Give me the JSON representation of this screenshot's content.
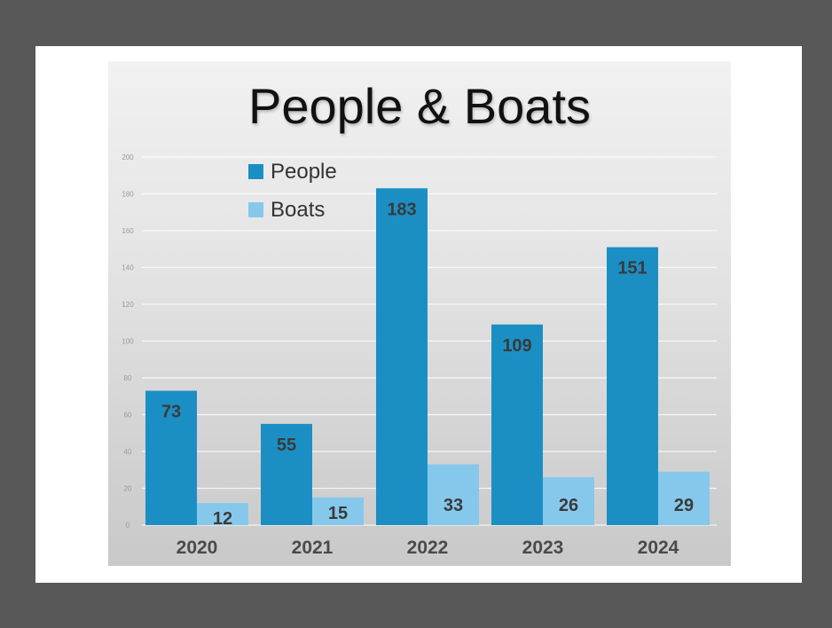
{
  "chart_data": {
    "type": "bar",
    "title": "People & Boats",
    "categories": [
      "2020",
      "2021",
      "2022",
      "2023",
      "2024"
    ],
    "series": [
      {
        "name": "People",
        "values": [
          73,
          55,
          183,
          109,
          151
        ],
        "color": "#1b8fc4"
      },
      {
        "name": "Boats",
        "values": [
          12,
          15,
          33,
          26,
          29
        ],
        "color": "#86c8ec"
      }
    ],
    "ylim": [
      0,
      200
    ],
    "yticks": [
      "0",
      "20",
      "40",
      "60",
      "80",
      "100",
      "120",
      "140",
      "160",
      "180",
      "200"
    ],
    "grid": true,
    "legend": "top-left",
    "data_labels": true
  }
}
